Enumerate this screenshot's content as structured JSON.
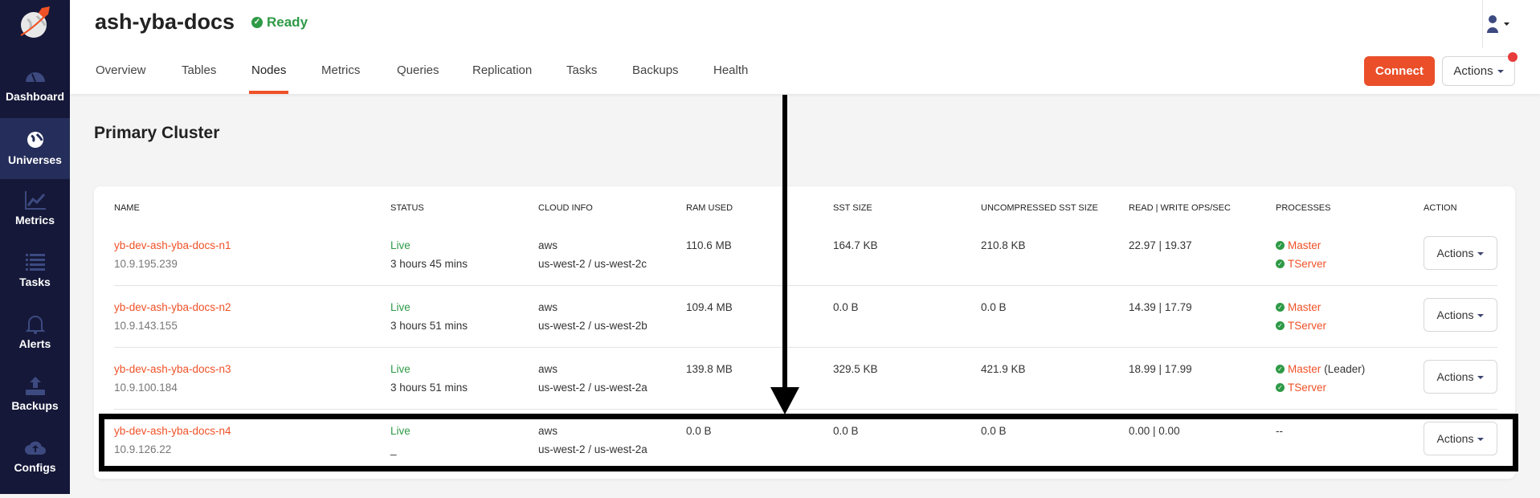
{
  "sidebar": {
    "items": [
      {
        "label": "Dashboard",
        "icon": "dashboard-gauge-icon",
        "active": false
      },
      {
        "label": "Universes",
        "icon": "globe-icon",
        "active": true
      },
      {
        "label": "Metrics",
        "icon": "line-chart-icon",
        "active": false
      },
      {
        "label": "Tasks",
        "icon": "list-icon",
        "active": false
      },
      {
        "label": "Alerts",
        "icon": "bell-icon",
        "active": false
      },
      {
        "label": "Backups",
        "icon": "upload-tray-icon",
        "active": false
      },
      {
        "label": "Configs",
        "icon": "cloud-upload-icon",
        "active": false
      }
    ]
  },
  "header": {
    "title": "ash-yba-docs",
    "status": "Ready",
    "status_color": "#2e9a46",
    "tabs": [
      "Overview",
      "Tables",
      "Nodes",
      "Metrics",
      "Queries",
      "Replication",
      "Tasks",
      "Backups",
      "Health"
    ],
    "active_tab": "Nodes",
    "connect_label": "Connect",
    "actions_label": "Actions",
    "accent": "#ef5127"
  },
  "section_title": "Primary Cluster",
  "table": {
    "columns": [
      "Name",
      "Status",
      "Cloud Info",
      "RAM Used",
      "SST Size",
      "Uncompressed SST Size",
      "Read | Write Ops/Sec",
      "Processes",
      "Action"
    ],
    "rows": [
      {
        "name": "yb-dev-ash-yba-docs-n1",
        "ip": "10.9.195.239",
        "status": "Live",
        "uptime": "3 hours 45 mins",
        "cloud": "aws",
        "region": "us-west-2 / us-west-2c",
        "ram": "110.6 MB",
        "sst": "164.7 KB",
        "uncompressed": "210.8 KB",
        "read": "22.97",
        "write": "19.37",
        "master": "Master",
        "master_note": "",
        "tserver": "TServer",
        "action": "Actions"
      },
      {
        "name": "yb-dev-ash-yba-docs-n2",
        "ip": "10.9.143.155",
        "status": "Live",
        "uptime": "3 hours 51 mins",
        "cloud": "aws",
        "region": "us-west-2 / us-west-2b",
        "ram": "109.4 MB",
        "sst": "0.0 B",
        "uncompressed": "0.0 B",
        "read": "14.39",
        "write": "17.79",
        "master": "Master",
        "master_note": "",
        "tserver": "TServer",
        "action": "Actions"
      },
      {
        "name": "yb-dev-ash-yba-docs-n3",
        "ip": "10.9.100.184",
        "status": "Live",
        "uptime": "3 hours 51 mins",
        "cloud": "aws",
        "region": "us-west-2 / us-west-2a",
        "ram": "139.8 MB",
        "sst": "329.5 KB",
        "uncompressed": "421.9 KB",
        "read": "18.99",
        "write": "17.99",
        "master": "Master",
        "master_note": "(Leader)",
        "tserver": "TServer",
        "action": "Actions"
      },
      {
        "name": "yb-dev-ash-yba-docs-n4",
        "ip": "10.9.126.22",
        "status": "Live",
        "uptime": "_",
        "cloud": "aws",
        "region": "us-west-2 / us-west-2a",
        "ram": "0.0 B",
        "sst": "0.0 B",
        "uncompressed": "0.0 B",
        "read": "0.00",
        "write": "0.00",
        "processes_text": "--",
        "action": "Actions"
      }
    ]
  }
}
